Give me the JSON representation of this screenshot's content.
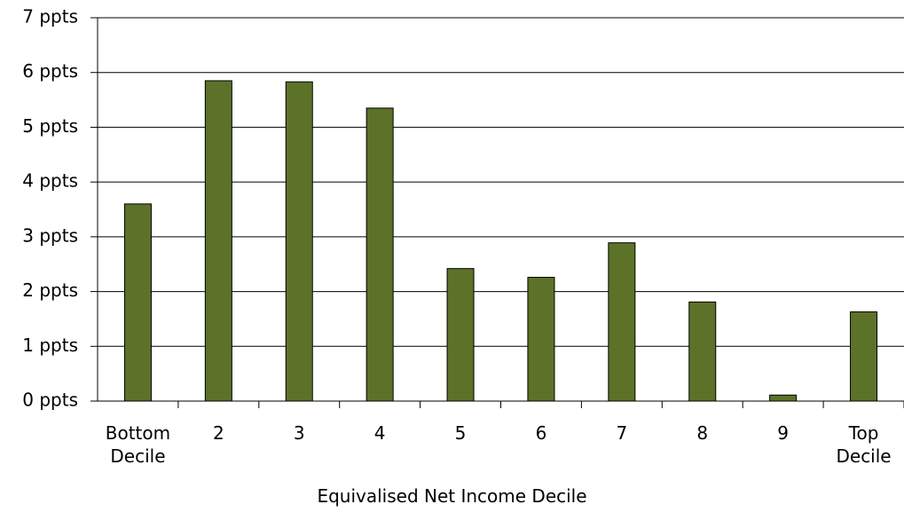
{
  "chart_data": {
    "type": "bar",
    "x_label": "Equivalised Net Income Decile",
    "categories": [
      "Bottom Decile",
      "2",
      "3",
      "4",
      "5",
      "6",
      "7",
      "8",
      "9",
      "Top Decile"
    ],
    "values": [
      3.6,
      5.85,
      5.83,
      5.35,
      2.42,
      2.26,
      2.89,
      1.81,
      0.11,
      1.63
    ],
    "color": "#5b7228",
    "ylim": [
      0,
      7
    ],
    "yticks": [
      {
        "value": 0,
        "label": "0 ppts"
      },
      {
        "value": 1,
        "label": "1 ppts"
      },
      {
        "value": 2,
        "label": "2 ppts"
      },
      {
        "value": 3,
        "label": "3 ppts"
      },
      {
        "value": 4,
        "label": "4 ppts"
      },
      {
        "value": 5,
        "label": "5 ppts"
      },
      {
        "value": 6,
        "label": "6 ppts"
      },
      {
        "value": 7,
        "label": "7 ppts"
      }
    ],
    "grid": true
  }
}
